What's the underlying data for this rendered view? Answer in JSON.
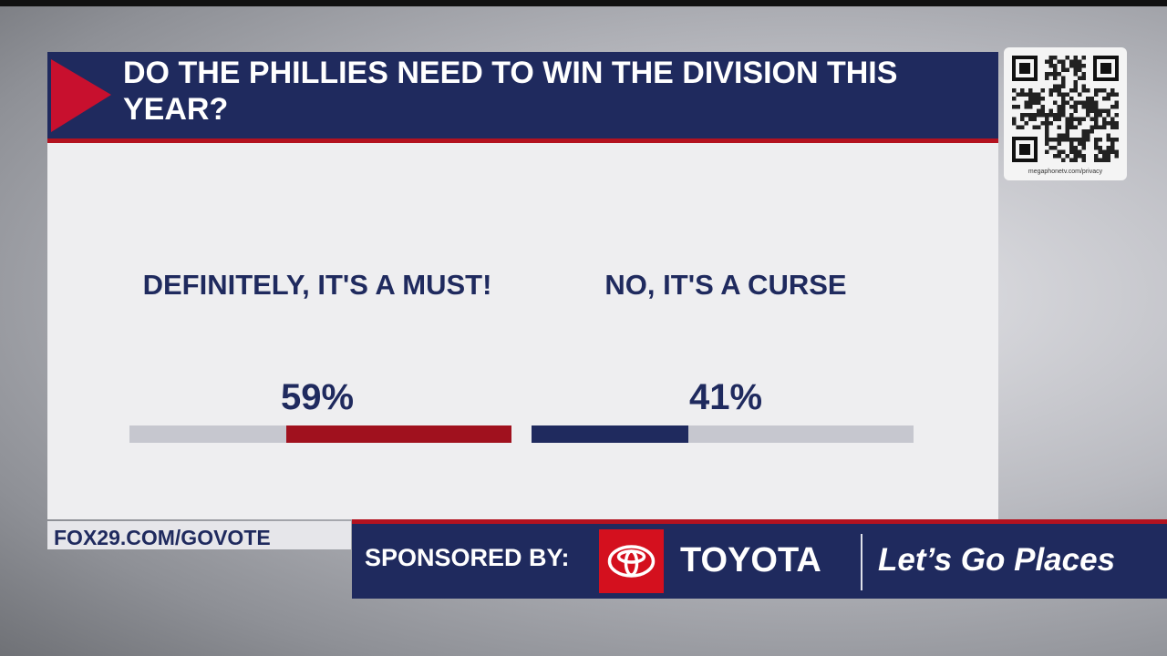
{
  "header": {
    "title": "DO THE PHILLIES NEED TO WIN THE DIVISION THIS YEAR?"
  },
  "poll": {
    "options": [
      "DEFINITELY, IT'S A MUST!",
      "NO, IT'S A CURSE"
    ],
    "values": [
      59,
      41
    ],
    "value_labels": [
      "59%",
      "41%"
    ],
    "colors": [
      "#a0111e",
      "#1f2a5e"
    ]
  },
  "qr": {
    "caption": "megaphonetv.com/privacy"
  },
  "footer": {
    "url": "FOX29.COM/GOVOTE"
  },
  "sponsor": {
    "label": "SPONSORED BY:",
    "brand": "TOYOTA",
    "slogan": "Let’s Go Places"
  }
}
